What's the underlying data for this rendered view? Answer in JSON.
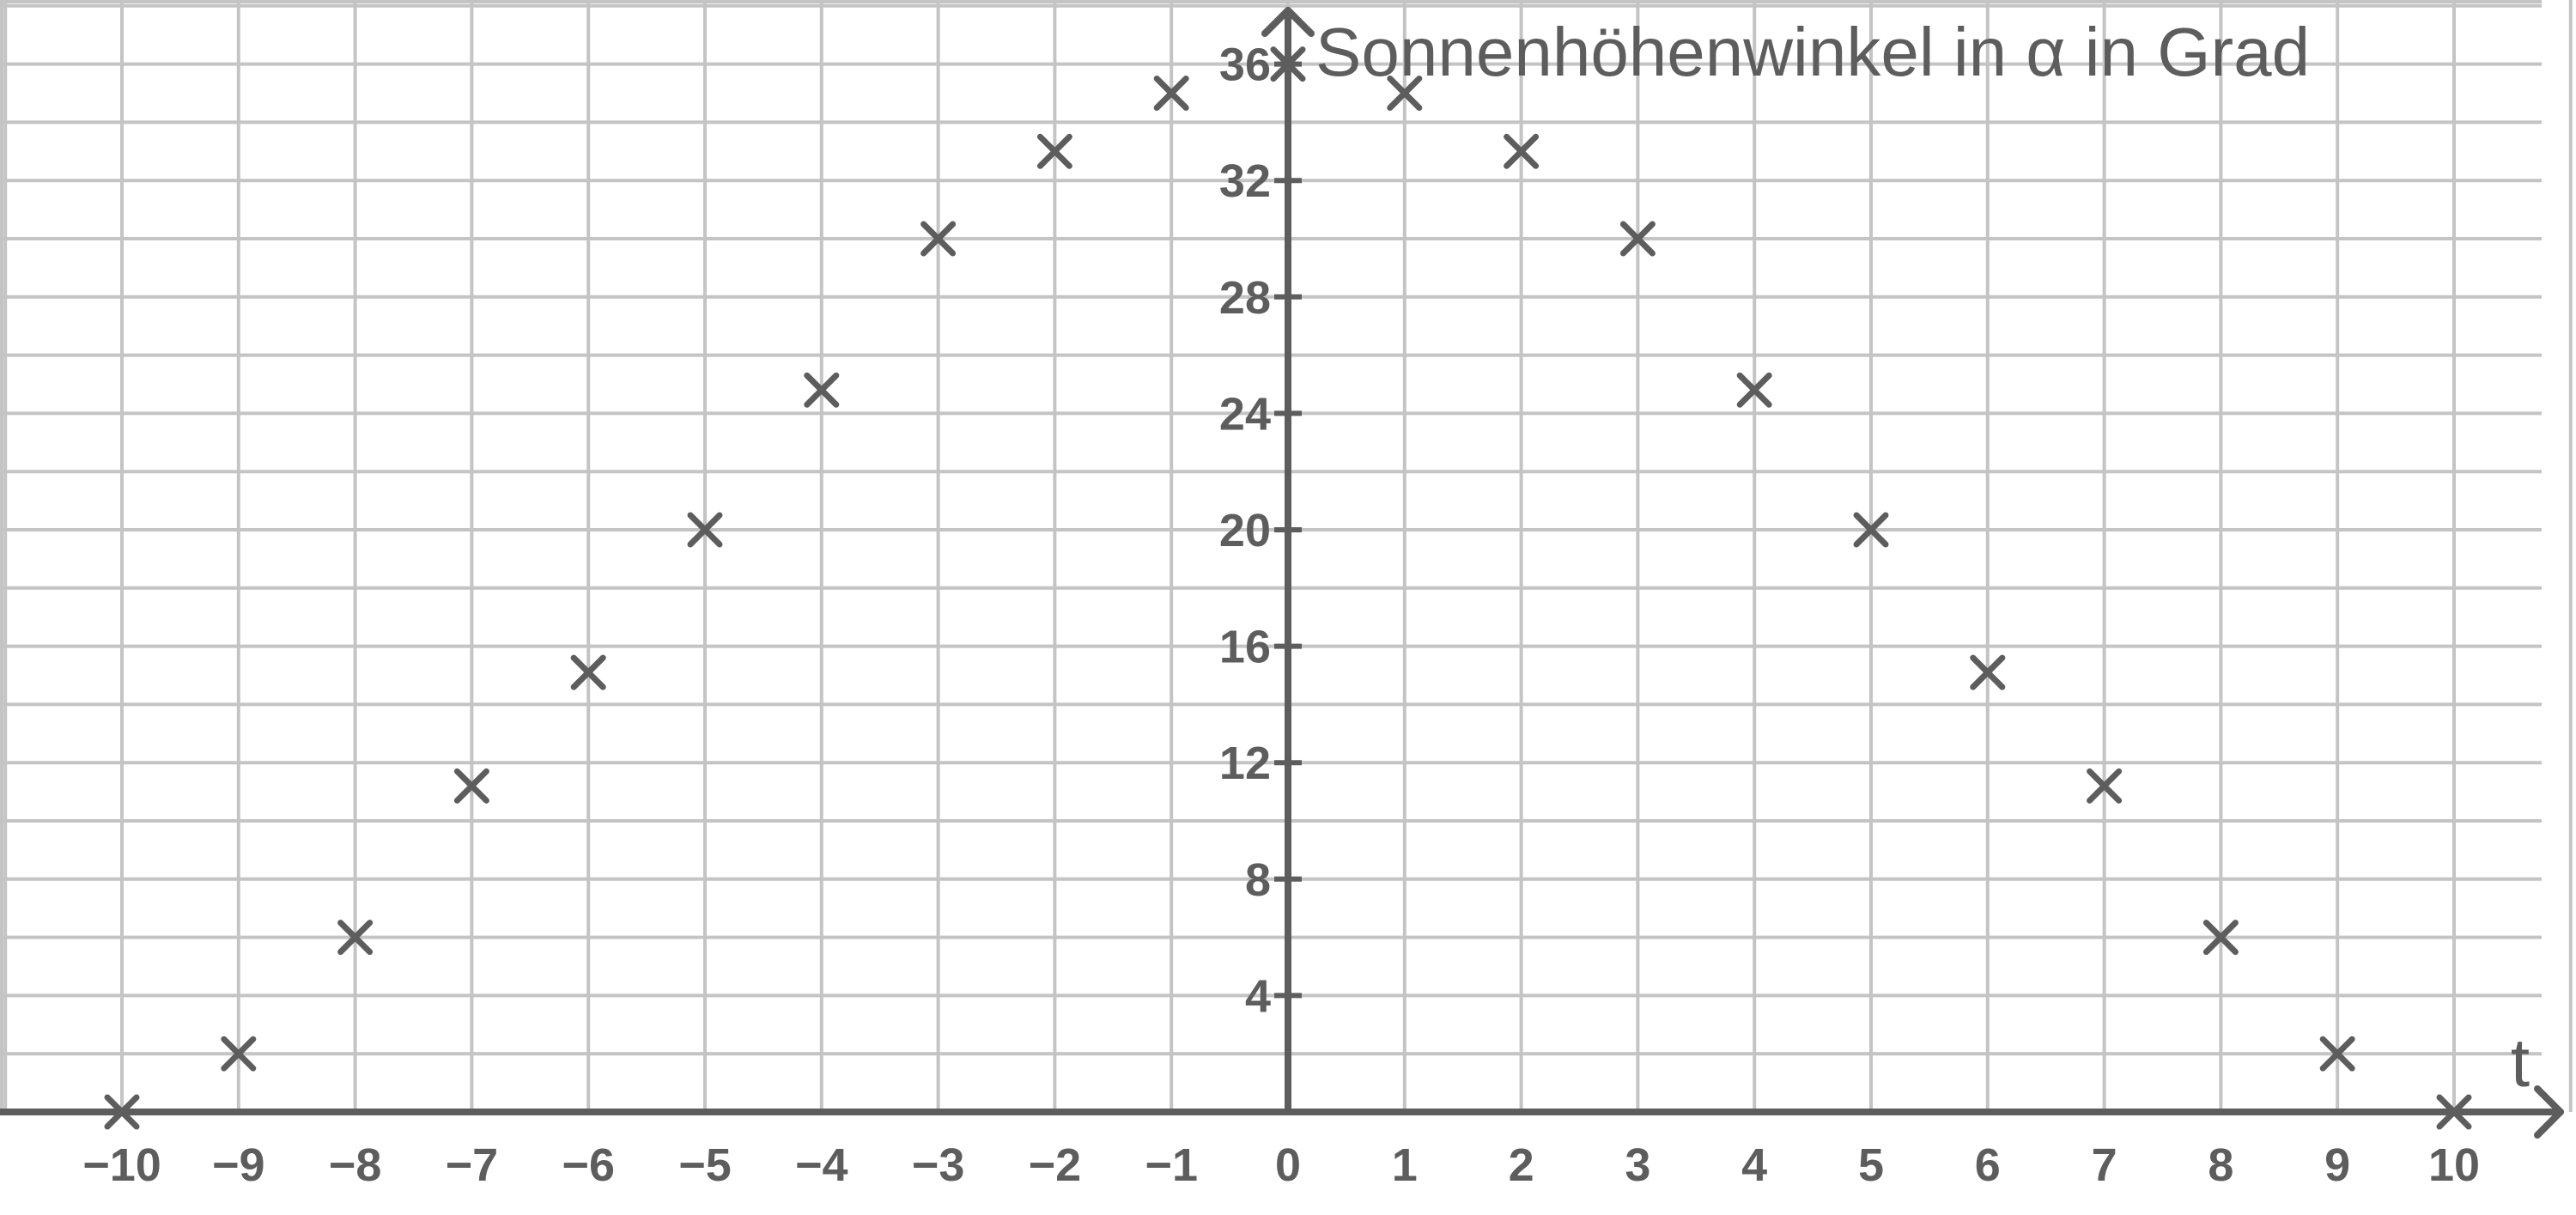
{
  "chart_data": {
    "type": "scatter",
    "marker": "x",
    "x": [
      -10,
      -9,
      -8,
      -7,
      -6,
      -5,
      -4,
      -3,
      -2,
      -1,
      0,
      1,
      2,
      3,
      4,
      5,
      6,
      7,
      8,
      9,
      10
    ],
    "y": [
      0,
      2,
      6,
      11.2,
      15.1,
      20,
      24.8,
      30,
      33,
      35,
      36,
      35,
      33,
      30,
      24.8,
      20,
      15.1,
      11.2,
      6,
      2,
      0
    ],
    "xlabel": "t",
    "ylabel": "Sonnenhöhenwinkel in α in Grad",
    "x_ticks": [
      -10,
      -9,
      -8,
      -7,
      -6,
      -5,
      -4,
      -3,
      -2,
      -1,
      0,
      1,
      2,
      3,
      4,
      5,
      6,
      7,
      8,
      9,
      10
    ],
    "x_tick_labels": [
      "−10",
      "−9",
      "−8",
      "−7",
      "−6",
      "−5",
      "−4",
      "−3",
      "−2",
      "−1",
      "0",
      "1",
      "2",
      "3",
      "4",
      "5",
      "6",
      "7",
      "8",
      "9",
      "10"
    ],
    "y_ticks": [
      4,
      8,
      12,
      16,
      20,
      24,
      28,
      32,
      36
    ],
    "y_tick_labels": [
      "4",
      "8",
      "12",
      "16",
      "20",
      "24",
      "28",
      "32",
      "36"
    ],
    "xlim": [
      -11,
      11
    ],
    "ylim": [
      0,
      38
    ],
    "grid": true,
    "colors": {
      "axis": "#5d5d5d",
      "grid": "#c4c4c4",
      "marker": "#5d5d5d"
    }
  }
}
